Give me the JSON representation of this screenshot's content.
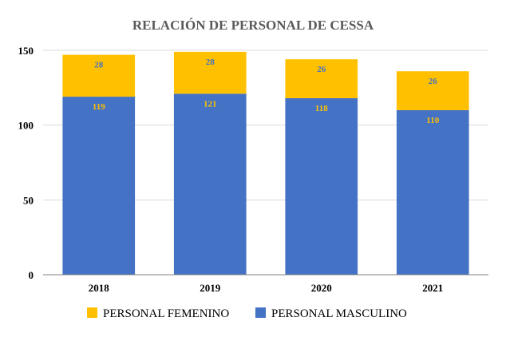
{
  "chart_data": {
    "type": "bar",
    "stacked": true,
    "title": "RELACIÓN DE PERSONAL DE CESSA",
    "categories": [
      "2018",
      "2019",
      "2020",
      "2021"
    ],
    "series": [
      {
        "name": "PERSONAL MASCULINO",
        "values": [
          119,
          121,
          118,
          110
        ],
        "color": "#4472C4",
        "label_color": "#FFC000"
      },
      {
        "name": "PERSONAL FEMENINO",
        "values": [
          28,
          28,
          26,
          26
        ],
        "color": "#FFC000",
        "label_color": "#4472C4"
      }
    ],
    "legend_order": [
      "PERSONAL FEMENINO",
      "PERSONAL MASCULINO"
    ],
    "yticks": [
      0,
      50,
      100,
      150
    ],
    "ylim": [
      0,
      150
    ],
    "grid": true,
    "legend_position": "bottom"
  }
}
